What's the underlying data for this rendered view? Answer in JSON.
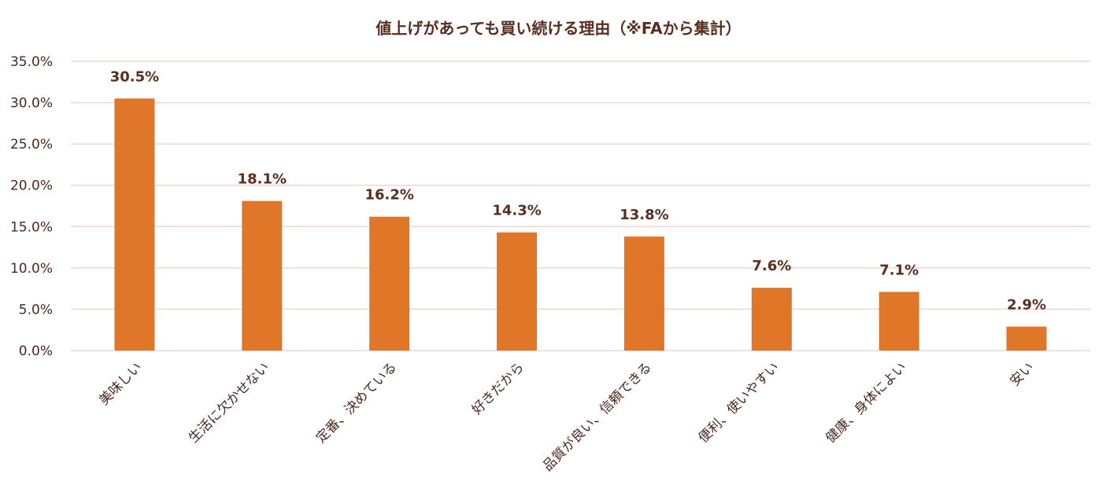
{
  "chart_data": {
    "type": "bar",
    "title": "値上げがあっても買い続ける理由（※FAから集計）",
    "categories": [
      "美味しい",
      "生活に欠かせない",
      "定番、決めている",
      "好きだから",
      "品質が良い、信頼できる",
      "便利、使いやすい",
      "健康、身体によい",
      "安い"
    ],
    "values": [
      30.5,
      18.1,
      16.2,
      14.3,
      13.8,
      7.6,
      7.1,
      2.9
    ],
    "data_labels": [
      "30.5%",
      "18.1%",
      "16.2%",
      "14.3%",
      "13.8%",
      "7.6%",
      "7.1%",
      "2.9%"
    ],
    "y_ticks": [
      0,
      5,
      10,
      15,
      20,
      25,
      30,
      35
    ],
    "y_tick_labels": [
      "0.0%",
      "5.0%",
      "10.0%",
      "15.0%",
      "20.0%",
      "25.0%",
      "30.0%",
      "35.0%"
    ],
    "ylim": [
      0,
      35
    ],
    "grid": true,
    "legend": "none",
    "colors": {
      "bar": "#E07627",
      "grid": "#EAD9D3",
      "text": "#5A2E1E"
    }
  }
}
